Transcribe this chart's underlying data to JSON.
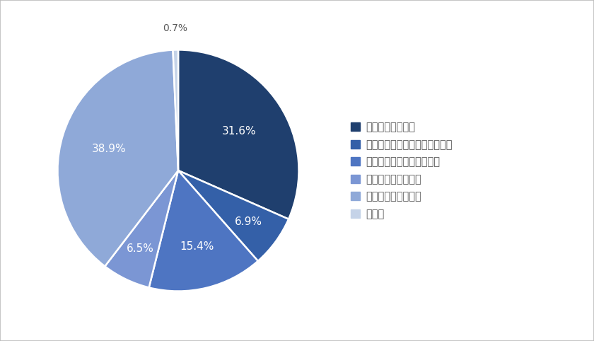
{
  "labels": [
    "生活のために必要",
    "働くこと自体が楽しい（好き）",
    "興味がある仕事を始めたい",
    "稼げる仕事をしたい",
    "あまり働きたくない",
    "その他"
  ],
  "values": [
    31.6,
    6.9,
    15.4,
    6.5,
    38.9,
    0.7
  ],
  "colors": [
    "#1f3f6e",
    "#3460a8",
    "#4e75c2",
    "#7b96d4",
    "#8fa9d8",
    "#c5d3e8"
  ],
  "pct_labels": [
    "31.6%",
    "6.9%",
    "15.4%",
    "6.5%",
    "38.9%",
    "0.7%"
  ],
  "startangle": 90,
  "background_color": "#ffffff",
  "border_color": "#bbbbbb",
  "text_color": "#595959",
  "wedge_edge_color": "#ffffff",
  "label_radii": [
    0.6,
    0.72,
    0.65,
    0.72,
    0.6,
    1.18
  ],
  "label_outside": [
    false,
    false,
    false,
    false,
    false,
    true
  ],
  "pct_fontsize": 11
}
